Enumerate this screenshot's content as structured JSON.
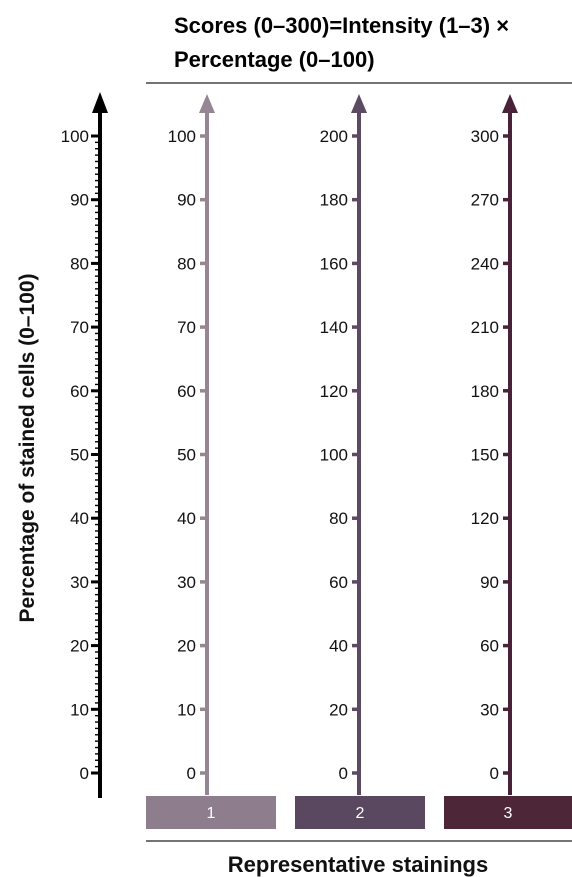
{
  "title": {
    "line1": "Scores (0–300)=Intensity (1–3) ×",
    "line2": "Percentage (0–100)"
  },
  "y_axis_label": "Percentage of stained cells (0–100)",
  "footer_label": "Representative stainings",
  "colors": {
    "main_axis": "#000000",
    "intensity_1": "#968592",
    "intensity_2": "#5c4a63",
    "intensity_3": "#4a2238",
    "swatch_1": "#8e7d8c",
    "swatch_2": "#5a4860",
    "swatch_3": "#4d2638"
  },
  "chart_data": {
    "type": "scale",
    "main_axis": {
      "label": "Percentage of stained cells (0–100)",
      "range": [
        0,
        100
      ],
      "ticks": [
        "0",
        "10",
        "20",
        "30",
        "40",
        "50",
        "60",
        "70",
        "80",
        "90",
        "100"
      ]
    },
    "scales": [
      {
        "intensity": "1",
        "range": [
          0,
          100
        ],
        "ticks": [
          "0",
          "10",
          "20",
          "30",
          "40",
          "50",
          "60",
          "70",
          "80",
          "90",
          "100"
        ]
      },
      {
        "intensity": "2",
        "range": [
          0,
          200
        ],
        "ticks": [
          "0",
          "20",
          "40",
          "60",
          "80",
          "100",
          "120",
          "140",
          "160",
          "180",
          "200"
        ]
      },
      {
        "intensity": "3",
        "range": [
          0,
          300
        ],
        "ticks": [
          "0",
          "30",
          "60",
          "90",
          "120",
          "150",
          "180",
          "210",
          "240",
          "270",
          "300"
        ]
      }
    ]
  }
}
